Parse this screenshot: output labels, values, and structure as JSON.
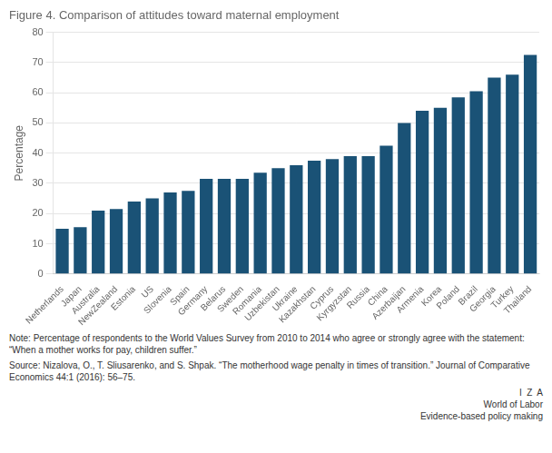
{
  "chart_data": {
    "type": "bar",
    "title": "Figure 4. Comparison of attitudes toward maternal employment",
    "ylabel": "Percentage",
    "categories": [
      "Netherlands",
      "Japan",
      "Australia",
      "NewZealand",
      "Estonia",
      "US",
      "Slovenia",
      "Spain",
      "Germany",
      "Belarus",
      "Sweden",
      "Romania",
      "Uzbekistan",
      "Ukraine",
      "Kazakhstan",
      "Cyprus",
      "Kyrgyzstan",
      "Russia",
      "China",
      "Azerbaijan",
      "Armenia",
      "Korea",
      "Poland",
      "Brazil",
      "Georgia",
      "Turkey",
      "Thailand"
    ],
    "values": [
      15.0,
      15.5,
      21.0,
      21.5,
      24.0,
      25.0,
      27.0,
      27.5,
      31.5,
      31.5,
      31.5,
      33.5,
      35.0,
      36.0,
      37.5,
      38.0,
      39.0,
      39.0,
      42.5,
      50.0,
      54.0,
      55.0,
      58.5,
      60.5,
      65.0,
      66.0,
      72.5
    ],
    "color": "#1a5276",
    "ylim": [
      0,
      80
    ],
    "yticks": [
      0,
      10,
      20,
      30,
      40,
      50,
      60,
      70,
      80
    ],
    "grid": true,
    "annotations": [
      "Note: Percentage of respondents to the World Values Survey from 2010 to 2014 who agree or strongly agree with the statement: “When a mother works for pay, children suffer.”",
      "Source: Nizalova, O., T. Sliusarenko, and S. Shpak. “The motherhood wage penalty in times of transition.” Journal of Comparative Economics 44:1 (2016): 56–75.",
      "I  Z  A",
      "World of Labor",
      "Evidence-based policy making"
    ]
  }
}
